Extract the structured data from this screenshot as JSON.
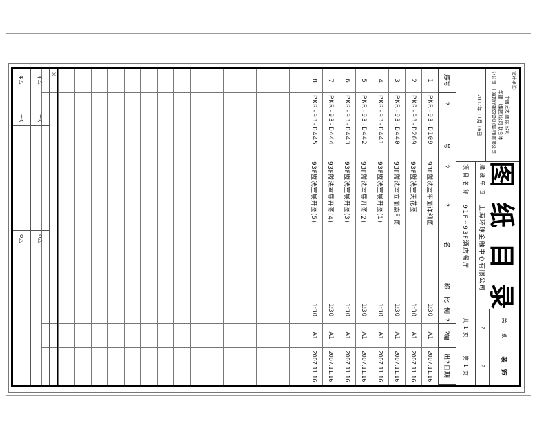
{
  "sheet": {
    "big_title": "图纸目录",
    "category_label": "类 别",
    "category_value": "装 饰",
    "pages_total": "共 1 页",
    "page_current": "第 1 页",
    "owner_label": "建设单位",
    "owner_value": "上海环球金融中心有限公司",
    "project_label": "项目名称",
    "project_value": "91F~93F酒店餐厅",
    "stamp_cell_1": "?",
    "stamp_cell_2": "?",
    "company_lines": [
      "设计单位:",
      "中国泛太(国际)公司",
      "华建一(集团)公司 联合体",
      "分公司: 上海现代建筑设计(集团)有限公司"
    ],
    "date_line": "2007年 11月 16日"
  },
  "table": {
    "headers": [
      "序号",
      "? 号",
      "? ? 名 称",
      "比 例:?",
      "?幅",
      "出?日期"
    ],
    "rows": [
      {
        "no": "1",
        "dwg": "PKR-93-D109",
        "name": "93F盥洗室平面详细图",
        "scale": "1:30",
        "size": "A1",
        "date": "2007.11.16"
      },
      {
        "no": "2",
        "dwg": "PKR-93-D209",
        "name": "93F盥洗室天花图",
        "scale": "1:30",
        "size": "A1",
        "date": "2007.11.16"
      },
      {
        "no": "3",
        "dwg": "PKR-93-D440",
        "name": "93F盥洗室立面索引图",
        "scale": "1:30",
        "size": "A1",
        "date": "2007.11.16"
      },
      {
        "no": "4",
        "dwg": "PKR-93-D441",
        "name": "93F盥洗室展开图(1)",
        "scale": "1:30",
        "size": "A1",
        "date": "2007.11.16"
      },
      {
        "no": "5",
        "dwg": "PKR-93-D442",
        "name": "93F盥洗室展开图(2)",
        "scale": "1:30",
        "size": "A1",
        "date": "2007.11.16"
      },
      {
        "no": "6",
        "dwg": "PKR-93-D443",
        "name": "93F盥洗室展开图(3)",
        "scale": "1:30",
        "size": "A1",
        "date": "2007.11.16"
      },
      {
        "no": "7",
        "dwg": "PKR-93-D444",
        "name": "93F盥洗室展开图(4)",
        "scale": "1:30",
        "size": "A1",
        "date": "2007.11.16"
      },
      {
        "no": "8",
        "dwg": "PKR-93-D445",
        "name": "93F盥洗室展开图(5)",
        "scale": "1:30",
        "size": "A1",
        "date": "2007.11.16"
      }
    ],
    "empty_row_count": 16
  },
  "marks": {
    "star": "✳",
    "fold_pair": "φ△",
    "squiggle": "∽ϛ"
  },
  "colors": {
    "line_thick": "#000000",
    "line_thin": "#777777",
    "paper": "#ffffff"
  }
}
